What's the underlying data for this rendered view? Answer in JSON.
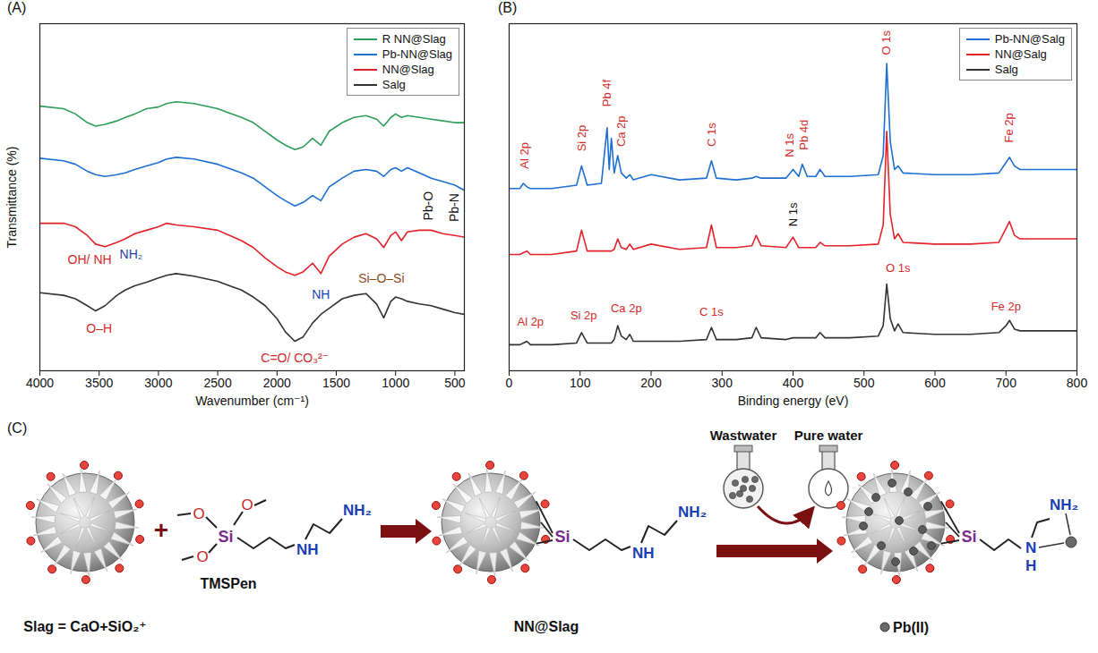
{
  "chart_data": [
    {
      "type": "line",
      "panel_label": "(A)",
      "x_label": "Wavenumber (cm⁻¹)",
      "y_label": "Transmittance (%)",
      "xlim": [
        4000,
        420
      ],
      "xticks": [
        4000,
        3500,
        3000,
        2500,
        2000,
        1500,
        1000,
        500
      ],
      "ylim": [
        0,
        100
      ],
      "yticks": [],
      "grid": false,
      "legend": "upper right",
      "tick_labels": "x",
      "x": [
        4000,
        3800,
        3700,
        3600,
        3530,
        3450,
        3350,
        3280,
        3200,
        3100,
        3000,
        2930,
        2850,
        2700,
        2500,
        2300,
        2200,
        2100,
        2000,
        1930,
        1850,
        1780,
        1700,
        1630,
        1560,
        1450,
        1350,
        1250,
        1160,
        1100,
        1040,
        1000,
        950,
        900,
        800,
        700,
        600,
        500,
        420
      ],
      "series": [
        {
          "name": "R NN@Slag",
          "color": "#2e9e5b",
          "values": [
            76.25,
            75.5,
            74,
            71.5,
            70.5,
            71,
            72,
            73,
            74,
            75.5,
            76,
            77,
            77.5,
            77,
            75.5,
            73,
            71.5,
            69,
            66.5,
            65,
            63.75,
            64.5,
            67,
            65,
            69,
            71.5,
            73,
            73.5,
            72.5,
            70.5,
            73,
            74,
            73,
            73.5,
            73,
            72.5,
            72,
            71.5,
            71.5
          ]
        },
        {
          "name": "Pb-NN@Slag",
          "color": "#1f6fd1",
          "values": [
            61.25,
            60.5,
            59.5,
            57.5,
            56.5,
            56,
            56.5,
            57,
            58,
            59,
            60,
            61,
            61.5,
            61,
            59.5,
            57,
            55.5,
            53,
            50.5,
            49,
            47.5,
            48.5,
            50.5,
            49,
            53,
            55.5,
            57.5,
            58,
            57.5,
            56,
            58,
            58.5,
            57.5,
            58.5,
            57,
            55.5,
            54.5,
            53.5,
            52
          ]
        },
        {
          "name": "NN@Slag",
          "color": "#e3222a",
          "values": [
            42.5,
            42.5,
            41.5,
            39,
            36.5,
            35.75,
            37,
            38,
            39.5,
            40.5,
            41.5,
            42.5,
            42,
            41.5,
            40.5,
            37.5,
            35.5,
            32.5,
            30,
            28.5,
            27.5,
            28.5,
            31,
            28,
            33,
            36.5,
            38.5,
            39.5,
            38,
            35.5,
            39,
            40,
            37.5,
            40,
            40.5,
            40.5,
            39.5,
            39,
            38.5
          ]
        },
        {
          "name": "Salg",
          "color": "#333333",
          "values": [
            22.5,
            21.75,
            20.75,
            18.75,
            17.25,
            18.75,
            21.75,
            23.25,
            24.5,
            25.5,
            26.75,
            27.5,
            28,
            27.25,
            25.75,
            23.25,
            21.25,
            18.75,
            15,
            11.25,
            8.5,
            9.75,
            13.75,
            16.25,
            18,
            20.75,
            21.75,
            22.25,
            19.25,
            15.25,
            20,
            21.25,
            20.75,
            20,
            19.25,
            18.75,
            17.75,
            16.75,
            16.25
          ]
        }
      ],
      "annotations": [
        {
          "text": "O–H",
          "x": 3500,
          "y": 12,
          "color": "#d42a2a"
        },
        {
          "text": "C=O/ CO₃²⁻",
          "x": 1850,
          "y": 3.5,
          "color": "#d42a2a"
        },
        {
          "text": "Si–O–Si",
          "x": 1120,
          "y": 26.5,
          "color": "#8b4a1c"
        },
        {
          "text": "OH/ NH",
          "x": 3580,
          "y": 32,
          "color": "#d42a2a"
        },
        {
          "text": "NH₂",
          "x": 3230,
          "y": 33.5,
          "color": "#1a3fb0"
        },
        {
          "text": "NH",
          "x": 1630,
          "y": 22,
          "color": "#1a3fb0"
        }
      ],
      "rotated_annotations": [
        {
          "text": "Pb-O",
          "x": 720,
          "y": 47.5,
          "color": "#111111"
        },
        {
          "text": "Pb-N",
          "x": 500,
          "y": 47,
          "color": "#111111"
        }
      ]
    },
    {
      "type": "line",
      "panel_label": "(B)",
      "x_label": "Binding energy (eV)",
      "xlim": [
        0,
        800
      ],
      "xticks": [
        0,
        100,
        200,
        300,
        400,
        500,
        600,
        700,
        800
      ],
      "ylim": [
        0,
        100
      ],
      "yticks": [],
      "grid": false,
      "legend": "upper right",
      "tick_labels": "x",
      "x": [
        0,
        15,
        20,
        25,
        30,
        60,
        95,
        102,
        110,
        130,
        138,
        141,
        144,
        148,
        153,
        158,
        165,
        170,
        175,
        200,
        240,
        278,
        285,
        292,
        320,
        342,
        348,
        355,
        390,
        400,
        408,
        413,
        420,
        432,
        438,
        445,
        480,
        520,
        527,
        532,
        537,
        543,
        548,
        555,
        600,
        650,
        690,
        700,
        705,
        712,
        720,
        760,
        800
      ],
      "series": [
        {
          "name": "Pb-NN@Salg",
          "color": "#1f6fd1",
          "values": [
            52.5,
            52.5,
            54,
            53,
            52.5,
            52.5,
            53.5,
            59,
            53.5,
            54,
            70,
            58,
            67,
            57,
            62,
            57,
            55.5,
            56.5,
            55,
            56.5,
            55,
            55.5,
            60.5,
            55.5,
            55,
            55.5,
            56,
            55.5,
            55.5,
            58,
            56,
            59.5,
            56,
            56,
            58,
            56,
            56,
            56.5,
            62,
            88.5,
            66,
            58,
            59,
            57,
            56.5,
            56.5,
            57,
            60,
            61.5,
            59,
            58,
            58,
            58
          ]
        },
        {
          "name": "NN@Salg",
          "color": "#e3222a",
          "values": [
            33.5,
            33.5,
            34,
            34.5,
            33.5,
            33.5,
            34.5,
            40.5,
            34.5,
            34.5,
            34.5,
            34.5,
            34.5,
            35,
            38,
            35.5,
            35,
            36.5,
            35,
            36.5,
            35,
            35.5,
            42,
            35.5,
            35.5,
            36,
            39,
            36,
            35.5,
            38.5,
            35.5,
            35.5,
            35.5,
            35.5,
            37,
            36,
            36,
            36.5,
            42,
            69,
            45,
            38,
            39.5,
            37,
            36.5,
            36.5,
            37,
            41,
            43,
            39,
            38,
            38,
            38
          ]
        },
        {
          "name": "Salg",
          "color": "#333333",
          "values": [
            7.5,
            7.5,
            8,
            8.5,
            7.5,
            7.5,
            8,
            11,
            8,
            8,
            8,
            8,
            8,
            9,
            13,
            10,
            9,
            10.5,
            8.5,
            8.5,
            8.5,
            9,
            12.5,
            9,
            9,
            9.5,
            12.5,
            9.5,
            9,
            9.5,
            9.5,
            9.5,
            9.5,
            9.5,
            11,
            9.5,
            9.5,
            10,
            13,
            25,
            15,
            11.5,
            13.5,
            11,
            10.5,
            10.5,
            11,
            13,
            14.5,
            12,
            11.5,
            11.5,
            11.5
          ]
        }
      ],
      "annotations": [
        {
          "text": "Al 2p",
          "x": 30,
          "y": 14,
          "color": "#d42a2a"
        },
        {
          "text": "Si 2p",
          "x": 105,
          "y": 16,
          "color": "#d42a2a"
        },
        {
          "text": "Ca 2p",
          "x": 165,
          "y": 18,
          "color": "#d42a2a"
        },
        {
          "text": "C 1s",
          "x": 285,
          "y": 17,
          "color": "#d42a2a"
        },
        {
          "text": "O 1s",
          "x": 548,
          "y": 29.5,
          "color": "#d42a2a"
        },
        {
          "text": "Fe 2p",
          "x": 700,
          "y": 18.5,
          "color": "#d42a2a"
        }
      ],
      "rotated_annotations": [
        {
          "text": "Al 2p",
          "x": 22,
          "y": 62,
          "color": "#d42a2a"
        },
        {
          "text": "Si 2p",
          "x": 102,
          "y": 67,
          "color": "#d42a2a"
        },
        {
          "text": "Pb 4f",
          "x": 138,
          "y": 80,
          "color": "#d42a2a"
        },
        {
          "text": "Ca 2p",
          "x": 158,
          "y": 69,
          "color": "#d42a2a"
        },
        {
          "text": "C 1s",
          "x": 285,
          "y": 68,
          "color": "#d42a2a"
        },
        {
          "text": "N 1s",
          "x": 395,
          "y": 65,
          "color": "#d42a2a"
        },
        {
          "text": "Pb 4d",
          "x": 416,
          "y": 68,
          "color": "#d42a2a"
        },
        {
          "text": "O 1s",
          "x": 532,
          "y": 94.5,
          "color": "#d42a2a"
        },
        {
          "text": "Fe 2p",
          "x": 705,
          "y": 70,
          "color": "#d42a2a"
        },
        {
          "text": "N 1s",
          "x": 400,
          "y": 45,
          "color": "#111111"
        }
      ]
    }
  ],
  "panel_c": {
    "label": "(C)",
    "slag_caption": "Slag = CaO+SiO₂⁺",
    "plus": "+",
    "reagent": "TMSPen",
    "atoms": {
      "oxygen": "O",
      "silicon": "Si",
      "amine": "NH",
      "terminal_amine": "NH₂",
      "nitrogen": "N",
      "hydrogen": "H"
    },
    "product": "NN@Slag",
    "wastewater": "Wastwater",
    "pure_water": "Pure water",
    "adsorbed": "Pb(II)"
  }
}
